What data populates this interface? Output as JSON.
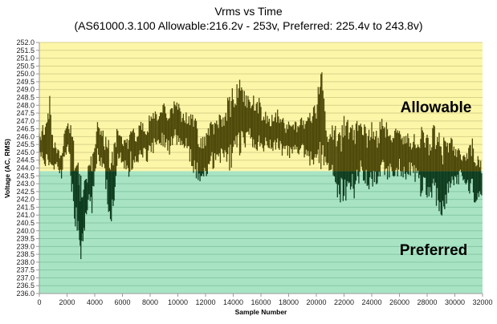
{
  "chart_data": {
    "type": "line",
    "title": "Vrms vs Time",
    "subtitle": "(AS61000.3.100 Allowable:216.2v - 253v, Preferred: 225.4v to 243.8v)",
    "xlabel": "Sample Number",
    "ylabel": "Voltage (AC, RMS)",
    "xlim": [
      0,
      32000
    ],
    "ylim": [
      236.0,
      252.0
    ],
    "grid": true,
    "x_ticks": [
      "0",
      "2000",
      "4000",
      "6000",
      "8000",
      "10000",
      "12000",
      "14000",
      "16000",
      "18000",
      "20000",
      "22000",
      "24000",
      "26000",
      "28000",
      "30000",
      "32000"
    ],
    "y_ticks": [
      "236.0",
      "236.5",
      "237.0",
      "237.5",
      "238.0",
      "238.5",
      "239.0",
      "239.5",
      "240.0",
      "240.5",
      "241.0",
      "241.5",
      "242.0",
      "242.5",
      "243.0",
      "243.5",
      "244.0",
      "244.5",
      "245.0",
      "245.5",
      "246.0",
      "246.5",
      "247.0",
      "247.5",
      "248.0",
      "248.5",
      "249.0",
      "249.5",
      "250.0",
      "250.5",
      "251.0",
      "251.5",
      "252.0"
    ],
    "regions": [
      {
        "name": "Allowable",
        "from": 243.8,
        "to": 252.0,
        "color": "#fcf6a8"
      },
      {
        "name": "Preferred",
        "from": 236.0,
        "to": 243.8,
        "color": "#a8e4c4"
      }
    ],
    "region_threshold": 243.8,
    "series": [
      {
        "name": "Vrms",
        "color_above": "#4f4a0a",
        "color_below": "#0f3d1f",
        "x": [
          0,
          250,
          500,
          750,
          900,
          1000,
          1200,
          1400,
          1600,
          1800,
          2000,
          2200,
          2400,
          2600,
          2800,
          2900,
          3000,
          3100,
          3200,
          3400,
          3600,
          3800,
          4000,
          4200,
          4400,
          4600,
          4800,
          5000,
          5200,
          5400,
          5600,
          5800,
          6000,
          6200,
          6400,
          6600,
          6800,
          7000,
          7200,
          7400,
          7600,
          7800,
          8000,
          8300,
          8600,
          9000,
          9400,
          9800,
          10200,
          10600,
          11000,
          11400,
          11600,
          11800,
          12000,
          12400,
          12800,
          13200,
          13600,
          14000,
          14400,
          14800,
          15200,
          15600,
          16000,
          16400,
          16800,
          17200,
          17600,
          18000,
          18400,
          18800,
          19200,
          19600,
          20000,
          20400,
          20700,
          21000,
          21300,
          21600,
          22000,
          22400,
          22800,
          23200,
          23600,
          24000,
          24400,
          24800,
          25200,
          25600,
          26000,
          26400,
          26800,
          27200,
          27600,
          28000,
          28400,
          28800,
          29200,
          29600,
          30000,
          30400,
          30800,
          31200,
          31600,
          32000
        ],
        "min": [
          244.2,
          244.5,
          243.8,
          243.4,
          243.3,
          243.5,
          244.0,
          243.6,
          243.2,
          244.5,
          245.0,
          244.3,
          241.0,
          240.0,
          239.8,
          238.0,
          237.4,
          238.5,
          239.2,
          240.5,
          241.8,
          240.8,
          243.5,
          244.5,
          244.0,
          243.6,
          242.5,
          240.5,
          239.4,
          241.8,
          244.0,
          244.2,
          243.8,
          244.0,
          243.0,
          244.0,
          243.6,
          244.0,
          244.2,
          244.6,
          244.8,
          244.2,
          244.6,
          245.0,
          245.6,
          245.2,
          244.8,
          245.6,
          245.0,
          245.2,
          244.0,
          243.0,
          242.8,
          243.4,
          243.0,
          244.0,
          243.8,
          244.2,
          243.6,
          244.0,
          244.6,
          245.0,
          245.6,
          245.0,
          244.8,
          245.2,
          244.8,
          245.0,
          244.6,
          244.6,
          244.6,
          244.8,
          244.5,
          244.0,
          244.2,
          243.8,
          244.0,
          243.2,
          242.8,
          241.8,
          241.3,
          242.2,
          242.0,
          243.2,
          242.8,
          242.4,
          243.0,
          243.6,
          243.2,
          243.0,
          243.6,
          243.2,
          243.5,
          243.0,
          242.0,
          241.8,
          241.6,
          241.2,
          240.2,
          242.0,
          242.4,
          243.2,
          242.8,
          242.0,
          241.6,
          241.2
        ],
        "max": [
          246.2,
          246.8,
          247.0,
          248.8,
          247.2,
          246.0,
          245.6,
          245.2,
          245.0,
          246.5,
          247.0,
          247.0,
          246.8,
          245.0,
          244.5,
          243.8,
          243.6,
          243.4,
          243.2,
          243.8,
          244.8,
          245.2,
          246.0,
          247.0,
          246.8,
          246.5,
          246.2,
          246.0,
          245.8,
          245.6,
          246.5,
          247.0,
          246.2,
          246.0,
          246.2,
          247.2,
          246.6,
          246.4,
          246.8,
          247.2,
          246.5,
          247.0,
          247.6,
          248.0,
          247.4,
          248.2,
          247.8,
          248.4,
          248.0,
          247.6,
          247.8,
          247.0,
          246.5,
          246.2,
          246.5,
          247.2,
          247.4,
          247.6,
          248.8,
          249.2,
          249.8,
          249.5,
          248.6,
          249.0,
          248.2,
          247.6,
          247.4,
          247.8,
          247.2,
          247.0,
          247.0,
          247.2,
          247.4,
          248.0,
          248.6,
          250.6,
          246.8,
          246.5,
          247.0,
          246.2,
          247.6,
          246.8,
          247.0,
          247.4,
          246.5,
          247.0,
          246.5,
          247.4,
          246.8,
          246.4,
          247.0,
          246.5,
          246.0,
          246.4,
          246.8,
          246.2,
          247.0,
          246.6,
          246.0,
          246.2,
          245.6,
          245.2,
          245.0,
          246.2,
          244.8,
          244.6
        ]
      }
    ],
    "annotations": [
      {
        "text": "Allowable",
        "region": "upper"
      },
      {
        "text": "Preferred",
        "region": "lower"
      }
    ]
  }
}
